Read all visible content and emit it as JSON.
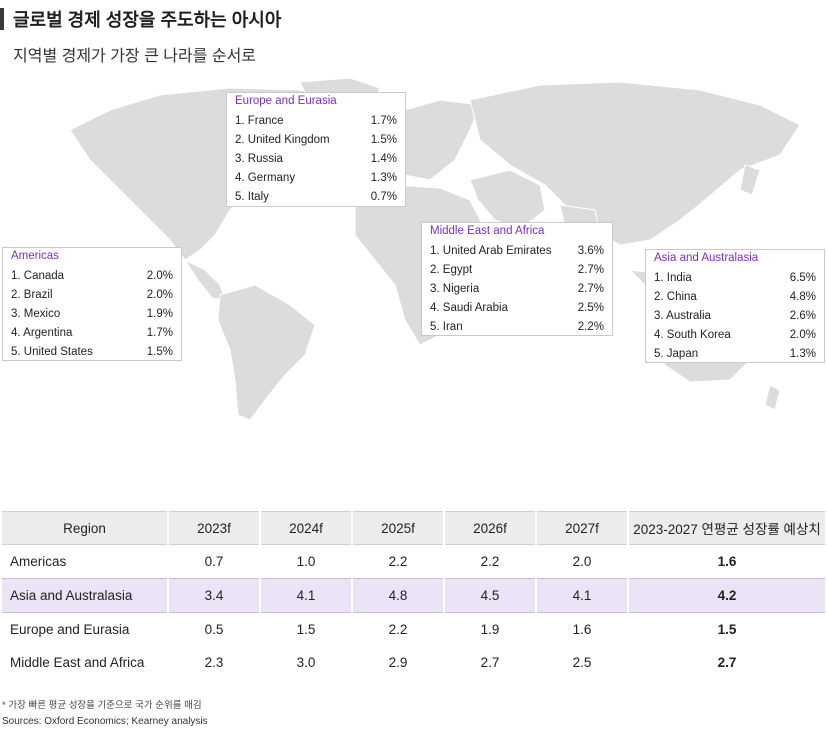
{
  "header": {
    "title": "글로벌 경제 성장을 주도하는 아시아",
    "subtitle": "지역별 경제가 가장 큰 나라를 순서로"
  },
  "colors": {
    "accent": "#7a2fbf",
    "highlight_row": "#ece3f6",
    "map_land": "#dcdcdc"
  },
  "callouts": [
    {
      "region": "Europe and Eurasia",
      "items": [
        {
          "name": "1. France",
          "value": "1.7%"
        },
        {
          "name": "2. United Kingdom",
          "value": "1.5%"
        },
        {
          "name": "3. Russia",
          "value": "1.4%"
        },
        {
          "name": "4. Germany",
          "value": "1.3%"
        },
        {
          "name": "5. Italy",
          "value": "0.7%"
        }
      ]
    },
    {
      "region": "Americas",
      "items": [
        {
          "name": "1. Canada",
          "value": "2.0%"
        },
        {
          "name": "2. Brazil",
          "value": "2.0%"
        },
        {
          "name": "3. Mexico",
          "value": "1.9%"
        },
        {
          "name": "4. Argentina",
          "value": "1.7%"
        },
        {
          "name": "5. United States",
          "value": "1.5%"
        }
      ]
    },
    {
      "region": "Middle East and Africa",
      "items": [
        {
          "name": "1. United Arab Emirates",
          "value": "3.6%"
        },
        {
          "name": "2. Egypt",
          "value": "2.7%"
        },
        {
          "name": "3. Nigeria",
          "value": "2.7%"
        },
        {
          "name": "4. Saudi Arabia",
          "value": "2.5%"
        },
        {
          "name": "5. Iran",
          "value": "2.2%"
        }
      ]
    },
    {
      "region": "Asia and Australasia",
      "items": [
        {
          "name": "1. India",
          "value": "6.5%"
        },
        {
          "name": "2. China",
          "value": "4.8%"
        },
        {
          "name": "3. Australia",
          "value": "2.6%"
        },
        {
          "name": "4. South Korea",
          "value": "2.0%"
        },
        {
          "name": "5. Japan",
          "value": "1.3%"
        }
      ]
    }
  ],
  "chart_data": {
    "type": "table",
    "columns": [
      "Region",
      "2023f",
      "2024f",
      "2025f",
      "2026f",
      "2027f",
      "2023-2027 연평균 성장률 예상치"
    ],
    "rows": [
      {
        "region": "Americas",
        "values": [
          "0.7",
          "1.0",
          "2.2",
          "2.2",
          "2.0"
        ],
        "avg": "1.6"
      },
      {
        "region": "Asia and Australasia",
        "values": [
          "3.4",
          "4.1",
          "4.8",
          "4.5",
          "4.1"
        ],
        "avg": "4.2"
      },
      {
        "region": "Europe and Eurasia",
        "values": [
          "0.5",
          "1.5",
          "2.2",
          "1.9",
          "1.6"
        ],
        "avg": "1.5"
      },
      {
        "region": "Middle East and Africa",
        "values": [
          "2.3",
          "3.0",
          "2.9",
          "2.7",
          "2.5"
        ],
        "avg": "2.7"
      }
    ],
    "highlighted_row": "Asia and Australasia"
  },
  "footer": {
    "footnote": "* 가장 빠른 평균 성장을 기준으로 국가 순위를 매김",
    "source": "Sources: Oxford Economics; Kearney analysis"
  }
}
